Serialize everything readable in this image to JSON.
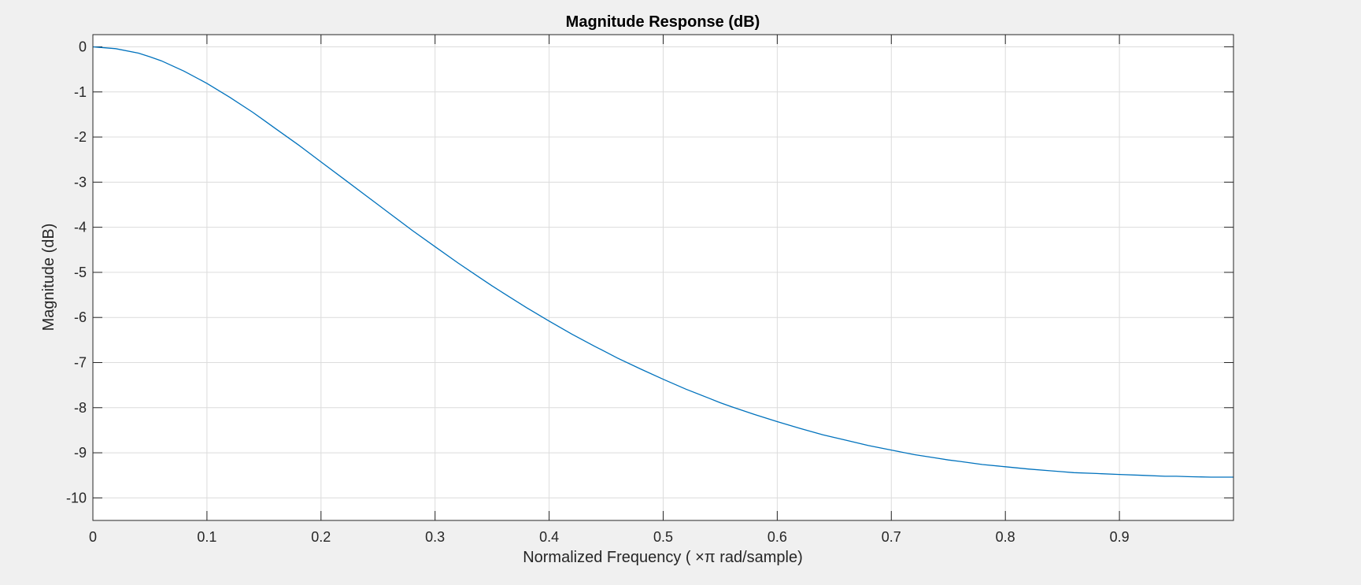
{
  "chart_data": {
    "type": "line",
    "title": "Magnitude Response (dB)",
    "xlabel": "Normalized  Frequency  ( ×π  rad/sample)",
    "ylabel": "Magnitude (dB)",
    "xlim": [
      0,
      1
    ],
    "ylim": [
      -10.5,
      0.27
    ],
    "x_ticks": [
      0,
      0.1,
      0.2,
      0.3,
      0.4,
      0.5,
      0.6,
      0.7,
      0.8,
      0.9
    ],
    "x_tick_labels": [
      "0",
      "0.1",
      "0.2",
      "0.3",
      "0.4",
      "0.5",
      "0.6",
      "0.7",
      "0.8",
      "0.9"
    ],
    "y_ticks": [
      0,
      -1,
      -2,
      -3,
      -4,
      -5,
      -6,
      -7,
      -8,
      -9,
      -10
    ],
    "y_tick_labels": [
      "0",
      "-1",
      "-2",
      "-3",
      "-4",
      "-5",
      "-6",
      "-7",
      "-8",
      "-9",
      "-10"
    ],
    "grid": true,
    "series": [
      {
        "color": "#0072bd",
        "x": [
          0,
          0.02,
          0.04,
          0.05,
          0.06,
          0.08,
          0.1,
          0.12,
          0.14,
          0.15,
          0.16,
          0.18,
          0.2,
          0.22,
          0.24,
          0.25,
          0.26,
          0.28,
          0.3,
          0.32,
          0.34,
          0.35,
          0.36,
          0.38,
          0.4,
          0.42,
          0.44,
          0.45,
          0.46,
          0.48,
          0.5,
          0.52,
          0.54,
          0.55,
          0.56,
          0.58,
          0.6,
          0.62,
          0.64,
          0.65,
          0.66,
          0.68,
          0.7,
          0.72,
          0.74,
          0.75,
          0.76,
          0.78,
          0.8,
          0.82,
          0.84,
          0.85,
          0.86,
          0.88,
          0.9,
          0.92,
          0.94,
          0.95,
          0.96,
          0.98,
          1.0
        ],
        "values": [
          0,
          -0.04,
          -0.14,
          -0.22,
          -0.31,
          -0.54,
          -0.81,
          -1.12,
          -1.45,
          -1.63,
          -1.81,
          -2.17,
          -2.55,
          -2.93,
          -3.31,
          -3.5,
          -3.69,
          -4.07,
          -4.43,
          -4.79,
          -5.13,
          -5.3,
          -5.46,
          -5.78,
          -6.08,
          -6.37,
          -6.64,
          -6.77,
          -6.9,
          -7.14,
          -7.37,
          -7.59,
          -7.79,
          -7.89,
          -7.98,
          -8.15,
          -8.31,
          -8.46,
          -8.6,
          -8.66,
          -8.72,
          -8.84,
          -8.94,
          -9.04,
          -9.12,
          -9.16,
          -9.19,
          -9.26,
          -9.31,
          -9.36,
          -9.4,
          -9.42,
          -9.44,
          -9.46,
          -9.48,
          -9.5,
          -9.52,
          -9.52,
          -9.53,
          -9.54,
          -9.54
        ]
      }
    ]
  }
}
